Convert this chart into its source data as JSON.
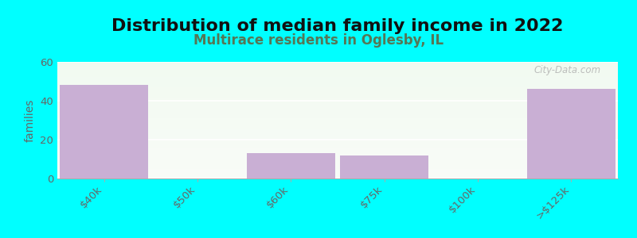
{
  "title": "Distribution of median family income in 2022",
  "subtitle": "Multirace residents in Oglesby, IL",
  "categories": [
    "$40k",
    "$50k",
    "$60k",
    "$75k",
    "$100k",
    ">$125k"
  ],
  "values": [
    48,
    0,
    13,
    12,
    0,
    46
  ],
  "bar_color": "#c9afd4",
  "background_color": "#00ffff",
  "plot_bg_top": "#f5faf2",
  "plot_bg_bottom": "#e8f5e2",
  "ylabel": "families",
  "ylim": [
    0,
    60
  ],
  "yticks": [
    0,
    20,
    40,
    60
  ],
  "title_fontsize": 16,
  "subtitle_fontsize": 12,
  "subtitle_color": "#557755",
  "ylabel_color": "#666666",
  "tick_color": "#666666",
  "watermark": "City-Data.com",
  "grid_color": "#dddddd"
}
